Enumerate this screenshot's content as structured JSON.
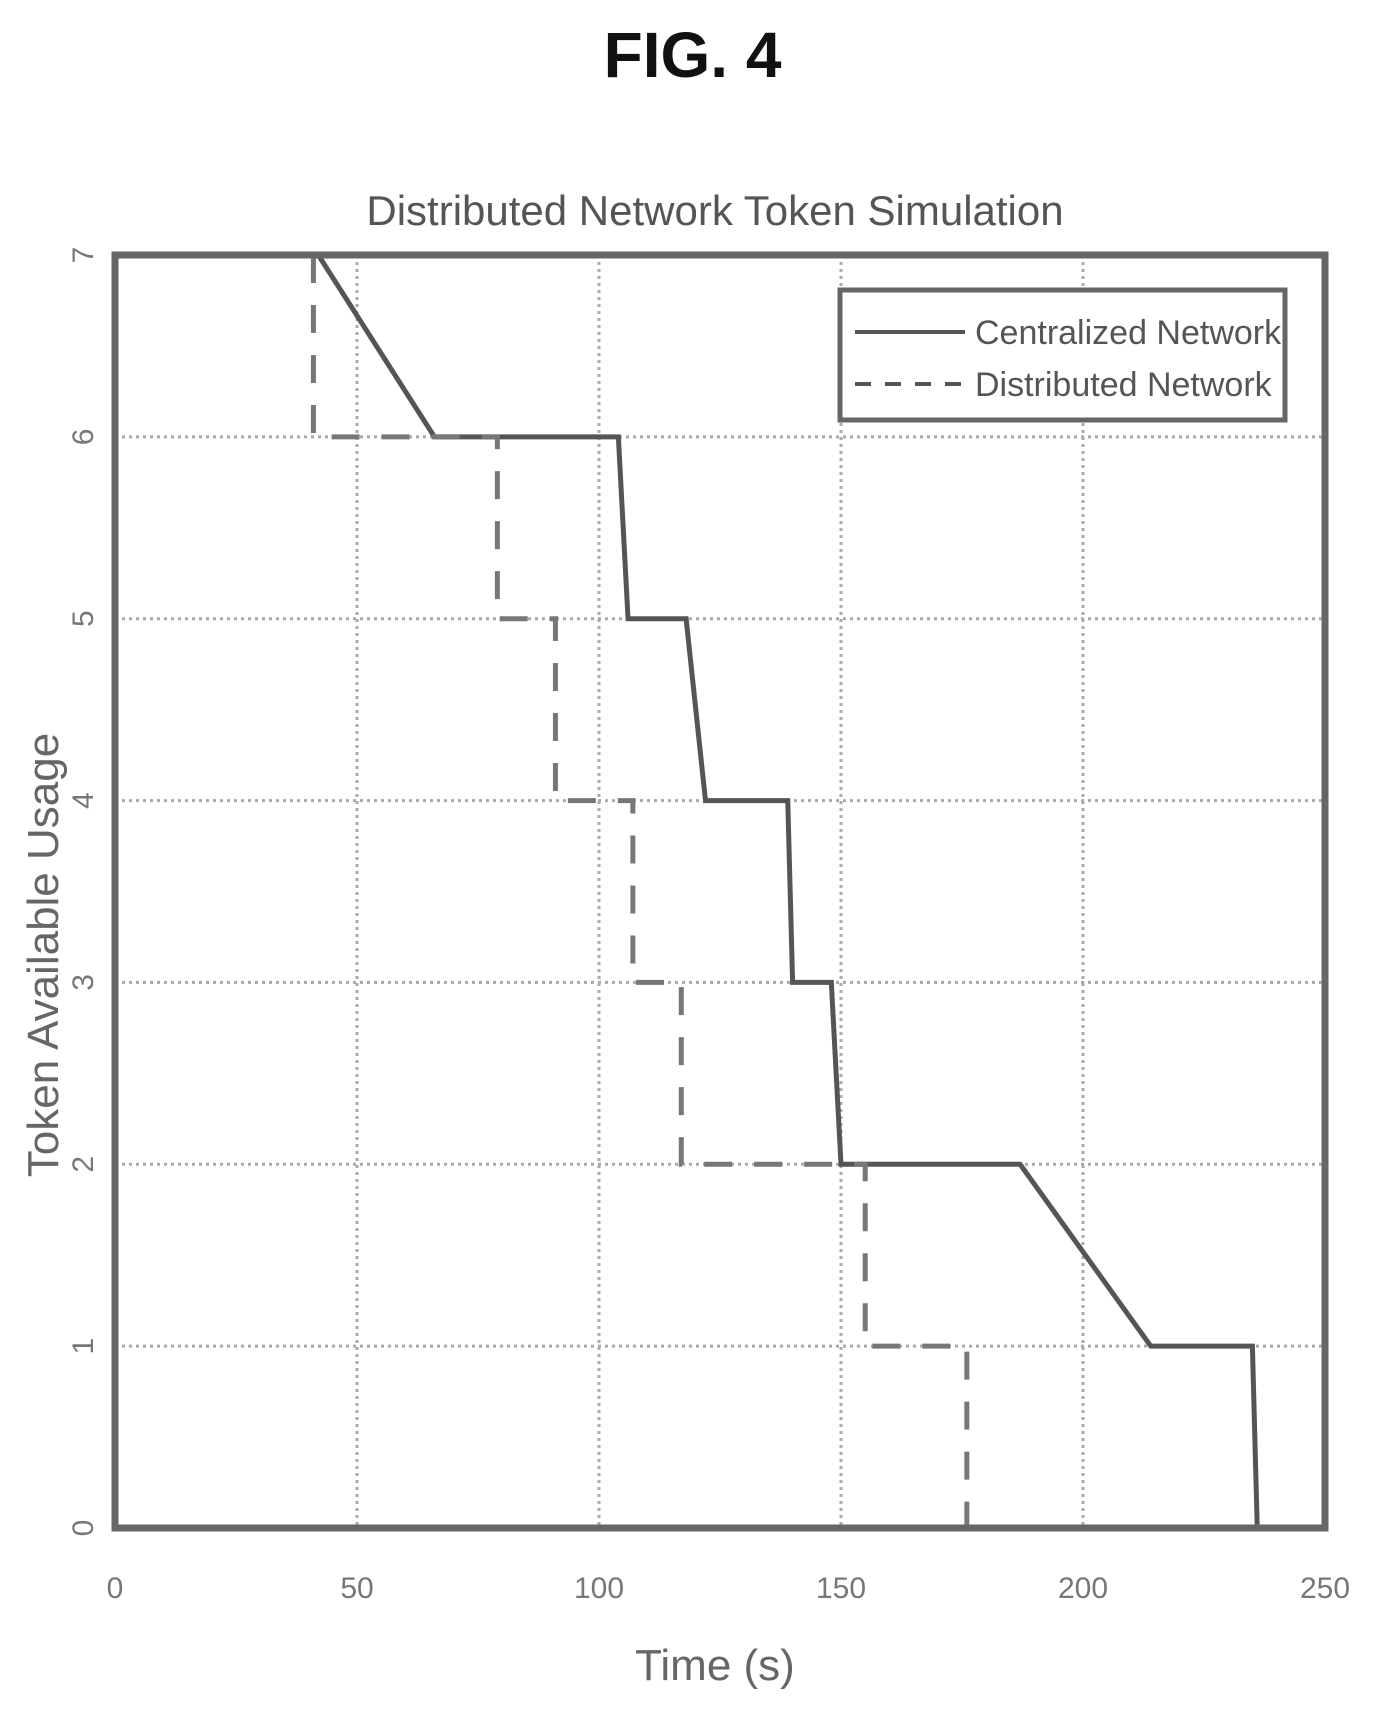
{
  "figure": {
    "label": "FIG. 4"
  },
  "chart_data": {
    "type": "line",
    "title": "Distributed Network Token Simulation",
    "xlabel": "Time (s)",
    "ylabel": "Token Available Usage",
    "xlim": [
      0,
      250
    ],
    "ylim": [
      0,
      7
    ],
    "xticks": [
      0,
      50,
      100,
      150,
      200,
      250
    ],
    "yticks": [
      0,
      1,
      2,
      3,
      4,
      5,
      6,
      7
    ],
    "grid": true,
    "legend_position": "top-right",
    "series": [
      {
        "name": "Centralized Network",
        "style": "solid",
        "points": [
          [
            42,
            7
          ],
          [
            66,
            6
          ],
          [
            104,
            6
          ],
          [
            106,
            5
          ],
          [
            118,
            5
          ],
          [
            122,
            4
          ],
          [
            139,
            4
          ],
          [
            140,
            3
          ],
          [
            148,
            3
          ],
          [
            150,
            2
          ],
          [
            187,
            2
          ],
          [
            214,
            1
          ],
          [
            235,
            1
          ],
          [
            236,
            0
          ]
        ]
      },
      {
        "name": "Distributed Network",
        "style": "dashed",
        "points": [
          [
            41,
            7
          ],
          [
            41,
            6
          ],
          [
            79,
            6
          ],
          [
            79,
            5
          ],
          [
            91,
            5
          ],
          [
            91,
            4
          ],
          [
            107,
            4
          ],
          [
            107,
            3
          ],
          [
            117,
            3
          ],
          [
            117,
            2
          ],
          [
            155,
            2
          ],
          [
            155,
            1
          ],
          [
            176,
            1
          ],
          [
            176,
            0
          ]
        ]
      }
    ]
  }
}
